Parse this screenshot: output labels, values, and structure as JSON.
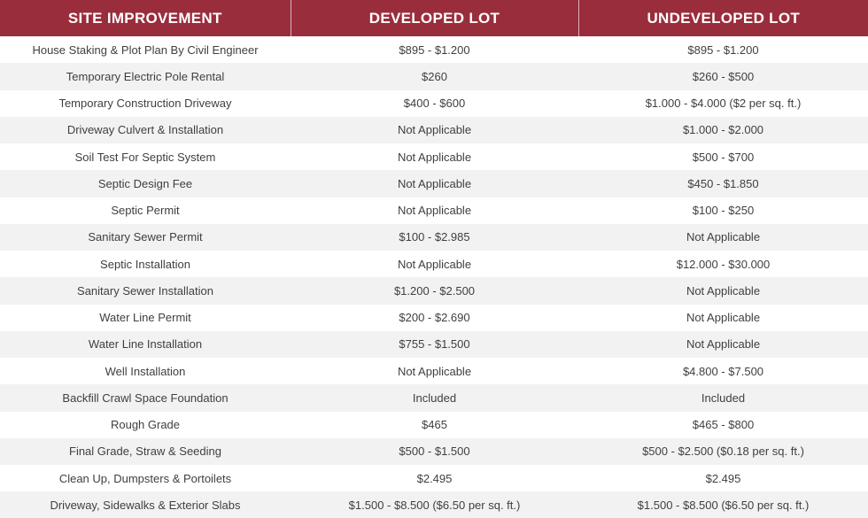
{
  "table": {
    "headers": [
      "SITE IMPROVEMENT",
      "DEVELOPED LOT",
      "UNDEVELOPED LOT"
    ],
    "rows": [
      [
        "House Staking & Plot Plan By Civil Engineer",
        "$895 - $1.200",
        "$895 - $1.200"
      ],
      [
        "Temporary Electric Pole Rental",
        "$260",
        "$260 - $500"
      ],
      [
        "Temporary Construction Driveway",
        "$400 - $600",
        "$1.000 - $4.000 ($2 per sq. ft.)"
      ],
      [
        "Driveway Culvert & Installation",
        "Not Applicable",
        "$1.000 - $2.000"
      ],
      [
        "Soil Test For Septic System",
        "Not Applicable",
        "$500 - $700"
      ],
      [
        "Septic Design Fee",
        "Not Applicable",
        "$450 - $1.850"
      ],
      [
        "Septic Permit",
        "Not Applicable",
        "$100 - $250"
      ],
      [
        "Sanitary Sewer Permit",
        "$100 - $2.985",
        "Not Applicable"
      ],
      [
        "Septic Installation",
        "Not Applicable",
        "$12.000 - $30.000"
      ],
      [
        "Sanitary Sewer Installation",
        "$1.200 - $2.500",
        "Not Applicable"
      ],
      [
        "Water Line Permit",
        "$200 - $2.690",
        "Not Applicable"
      ],
      [
        "Water Line Installation",
        "$755 - $1.500",
        "Not Applicable"
      ],
      [
        "Well Installation",
        "Not Applicable",
        "$4.800 - $7.500"
      ],
      [
        "Backfill Crawl Space Foundation",
        "Included",
        "Included"
      ],
      [
        "Rough Grade",
        "$465",
        "$465 - $800"
      ],
      [
        "Final Grade, Straw & Seeding",
        "$500 - $1.500",
        "$500 - $2.500 ($0.18 per sq. ft.)"
      ],
      [
        "Clean Up, Dumpsters & Portoilets",
        "$2.495",
        "$2.495"
      ],
      [
        "Driveway, Sidewalks & Exterior Slabs",
        "$1.500 - $8.500 ($6.50 per sq. ft.)",
        "$1.500 - $8.500 ($6.50 per sq. ft.)"
      ]
    ]
  },
  "colors": {
    "header_bg": "#9a2d3c",
    "header_text": "#ffffff",
    "stripe": "#f2f2f2"
  }
}
